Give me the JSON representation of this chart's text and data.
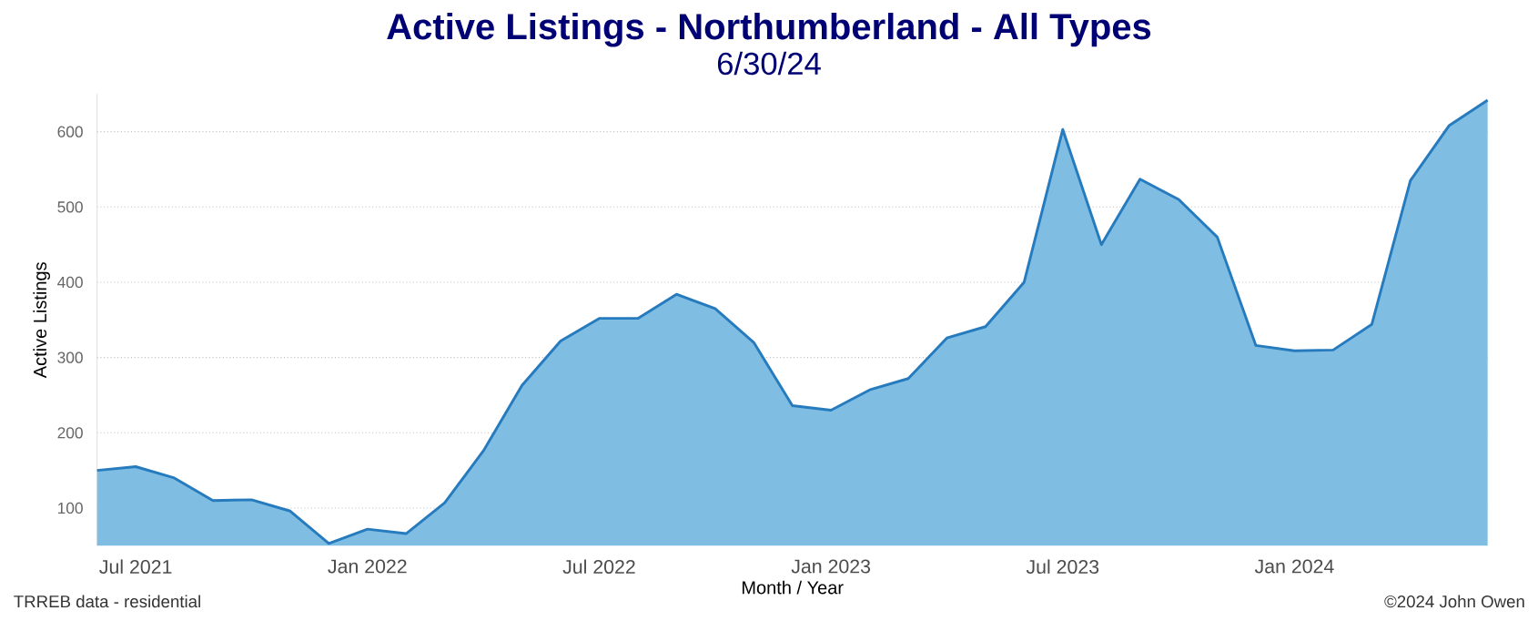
{
  "chart_data": {
    "type": "area",
    "title": "Active Listings - Northumberland - All Types",
    "subtitle": "6/30/24",
    "xlabel": "Month / Year",
    "ylabel": "Active Listings",
    "annotations": [
      "TRREB data - residential",
      "©2024 John Owen"
    ],
    "x": [
      "2021-06",
      "2021-07",
      "2021-08",
      "2021-09",
      "2021-10",
      "2021-11",
      "2021-12",
      "2022-01",
      "2022-02",
      "2022-03",
      "2022-04",
      "2022-05",
      "2022-06",
      "2022-07",
      "2022-08",
      "2022-09",
      "2022-10",
      "2022-11",
      "2022-12",
      "2023-01",
      "2023-02",
      "2023-03",
      "2023-04",
      "2023-05",
      "2023-06",
      "2023-07",
      "2023-08",
      "2023-09",
      "2023-10",
      "2023-11",
      "2023-12",
      "2024-01",
      "2024-02",
      "2024-03",
      "2024-04",
      "2024-05",
      "2024-06"
    ],
    "series": [
      {
        "color": "#7fbde2",
        "values": [
          150,
          155,
          140,
          110,
          111,
          96,
          53,
          72,
          66,
          107,
          176,
          263,
          322,
          352,
          352,
          384,
          365,
          320,
          236,
          230,
          257,
          272,
          326,
          341,
          400,
          603,
          450,
          537,
          510,
          460,
          316,
          309,
          310,
          344,
          535,
          608,
          642
        ]
      }
    ],
    "xlim": [
      "2021-06",
      "2024-06"
    ],
    "ylim": [
      50,
      650
    ],
    "xticks": [
      {
        "value": "2021-07",
        "label": "Jul 2021"
      },
      {
        "value": "2022-01",
        "label": "Jan 2022"
      },
      {
        "value": "2022-07",
        "label": "Jul 2022"
      },
      {
        "value": "2023-01",
        "label": "Jan 2023"
      },
      {
        "value": "2023-07",
        "label": "Jul 2023"
      },
      {
        "value": "2024-01",
        "label": "Jan 2024"
      }
    ],
    "yticks": [
      100,
      200,
      300,
      400,
      500,
      600
    ],
    "grid": "y"
  }
}
